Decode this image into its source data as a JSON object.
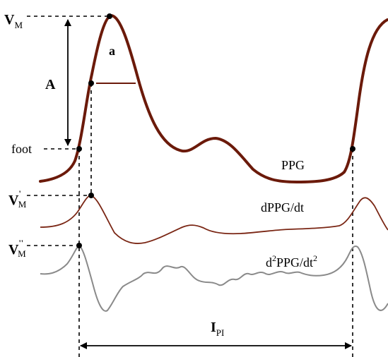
{
  "labels": {
    "vm": {
      "main": "V",
      "sub": "M"
    },
    "vm_prime": {
      "main": "V",
      "prime": "'",
      "sub": "M"
    },
    "vm_double_prime": {
      "main": "V",
      "prime": "''",
      "sub": "M"
    },
    "amplitude": "A",
    "point_a": "a",
    "foot": "foot",
    "ppg": "PPG",
    "dppg": "dPPG/dt",
    "d2ppg": {
      "d": "d",
      "exp1": "2",
      "mid": "PPG/dt",
      "exp2": "2"
    },
    "interval": {
      "main": "I",
      "sub": "PI"
    }
  },
  "colors": {
    "ppg_curve": "#6b1a0a",
    "dppg_curve": "#7a2614",
    "d2ppg_curve": "#8a8a8a",
    "guides": "#000000"
  }
}
